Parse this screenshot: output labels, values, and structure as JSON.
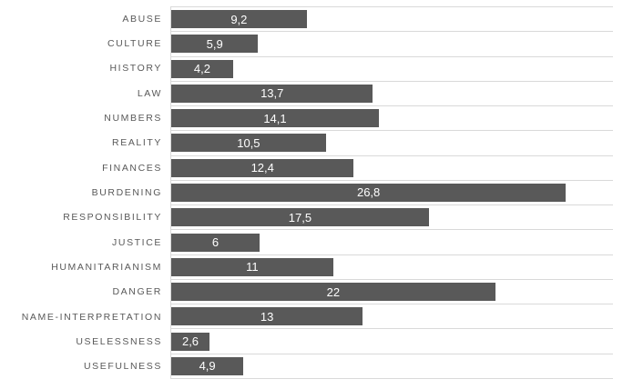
{
  "chart": {
    "background_color": "#ffffff",
    "bar_color": "#595959",
    "gridline_color": "#d9d9d9",
    "axis_line_color": "#d9d9d9",
    "category_label_color": "#595959",
    "value_label_color": "#ffffff"
  },
  "chart_data": {
    "type": "bar",
    "orientation": "horizontal",
    "title": "",
    "xlabel": "",
    "ylabel": "",
    "xlim": [
      0,
      30
    ],
    "grid": "category-row-separators",
    "legend": "none",
    "value_label_position": "center",
    "decimal_separator": ",",
    "categories": [
      "ABUSE",
      "CULTURE",
      "HISTORY",
      "LAW",
      "NUMBERS",
      "REALITY",
      "FINANCES",
      "BURDENING",
      "RESPONSIBILITY",
      "JUSTICE",
      "HUMANITARIANISM",
      "DANGER",
      "NAME-INTERPRETATION",
      "USELESSNESS",
      "USEFULNESS"
    ],
    "values": [
      9.2,
      5.9,
      4.2,
      13.7,
      14.1,
      10.5,
      12.4,
      26.8,
      17.5,
      6,
      11,
      22,
      13,
      2.6,
      4.9
    ],
    "value_labels": [
      "9,2",
      "5,9",
      "4,2",
      "13,7",
      "14,1",
      "10,5",
      "12,4",
      "26,8",
      "17,5",
      "6",
      "11",
      "22",
      "13",
      "2,6",
      "4,9"
    ]
  }
}
